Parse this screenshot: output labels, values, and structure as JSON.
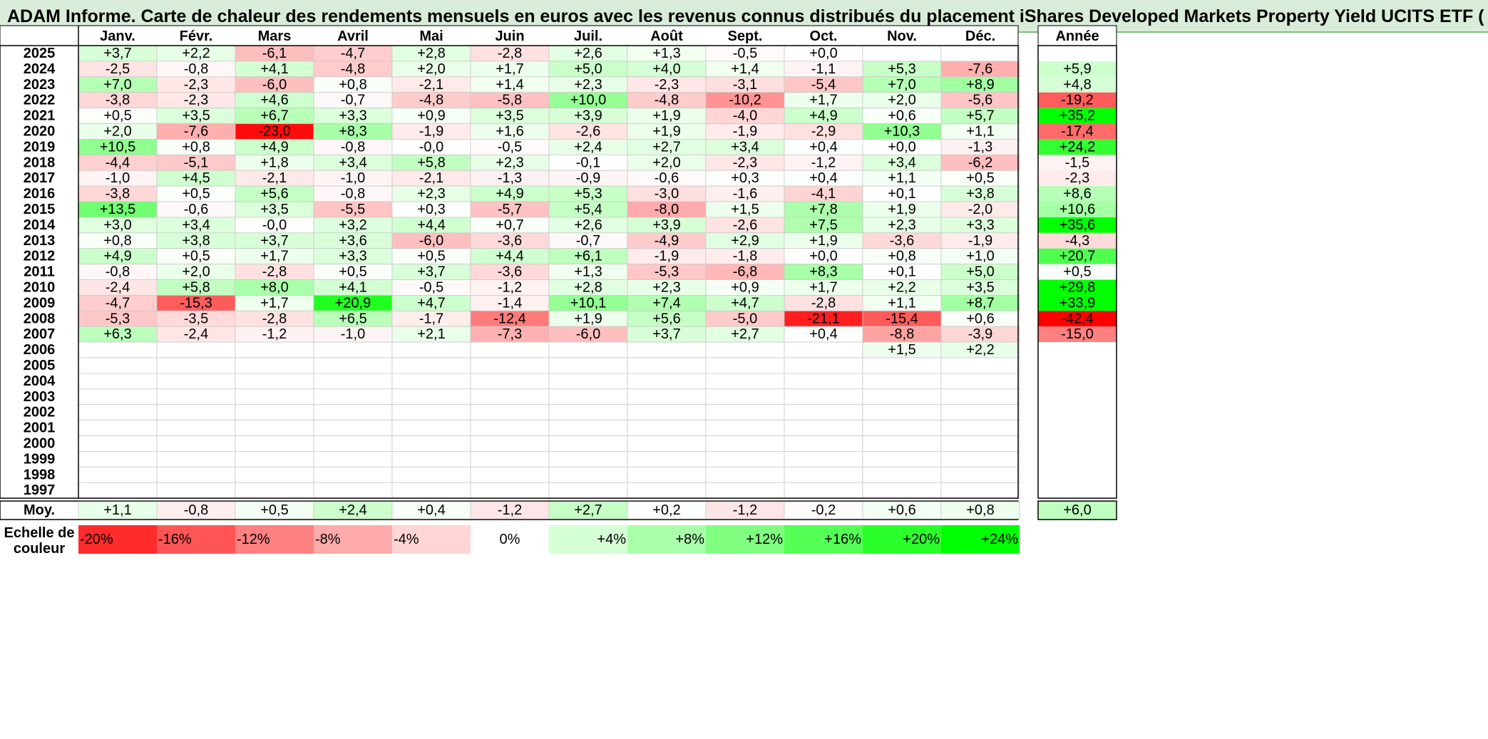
{
  "title": "ADAM Informe. Carte de chaleur des rendements mensuels en euros avec les revenus connus distribués du placement iShares Developed Markets Property Yield UCITS ETF (",
  "colors": {
    "title_bg": "#d9ecd9",
    "negative_max": "#ff0000",
    "positive_max": "#00ff00",
    "zero": "#ffffff"
  },
  "chart_data": {
    "type": "heatmap",
    "months": [
      "Janv.",
      "Févr.",
      "Mars",
      "Avril",
      "Mai",
      "Juin",
      "Juil.",
      "Août",
      "Sept.",
      "Oct.",
      "Nov.",
      "Déc."
    ],
    "year_column_label": "Année",
    "avg_row_label": "Moy.",
    "rows": [
      {
        "year": "2025",
        "values": [
          "+3,7",
          "+2,2",
          "-6,1",
          "-4,7",
          "+2,8",
          "-2,8",
          "+2,6",
          "+1,3",
          "-0,5",
          "+0,0",
          "",
          ""
        ],
        "annual": ""
      },
      {
        "year": "2024",
        "values": [
          "-2,5",
          "-0,8",
          "+4,1",
          "-4,8",
          "+2,0",
          "+1,7",
          "+5,0",
          "+4,0",
          "+1,4",
          "-1,1",
          "+5,3",
          "-7,6"
        ],
        "annual": "+5,9"
      },
      {
        "year": "2023",
        "values": [
          "+7,0",
          "-2,3",
          "-6,0",
          "+0,8",
          "-2,1",
          "+1,4",
          "+2,3",
          "-2,3",
          "-3,1",
          "-5,4",
          "+7,0",
          "+8,9"
        ],
        "annual": "+4,8"
      },
      {
        "year": "2022",
        "values": [
          "-3,8",
          "-2,3",
          "+4,6",
          "-0,7",
          "-4,8",
          "-5,8",
          "+10,0",
          "-4,8",
          "-10,2",
          "+1,7",
          "+2,0",
          "-5,6"
        ],
        "annual": "-19,2"
      },
      {
        "year": "2021",
        "values": [
          "+0,5",
          "+3,5",
          "+6,7",
          "+3,3",
          "+0,9",
          "+3,5",
          "+3,9",
          "+1,9",
          "-4,0",
          "+4,9",
          "+0,6",
          "+5,7"
        ],
        "annual": "+35,2"
      },
      {
        "year": "2020",
        "values": [
          "+2,0",
          "-7,6",
          "-23,0",
          "+8,3",
          "-1,9",
          "+1,6",
          "-2,6",
          "+1,9",
          "-1,9",
          "-2,9",
          "+10,3",
          "+1,1"
        ],
        "annual": "-17,4"
      },
      {
        "year": "2019",
        "values": [
          "+10,5",
          "+0,8",
          "+4,9",
          "-0,8",
          "-0,0",
          "-0,5",
          "+2,4",
          "+2,7",
          "+3,4",
          "+0,4",
          "+0,0",
          "-1,3"
        ],
        "annual": "+24,2"
      },
      {
        "year": "2018",
        "values": [
          "-4,4",
          "-5,1",
          "+1,8",
          "+3,4",
          "+5,8",
          "+2,3",
          "-0,1",
          "+2,0",
          "-2,3",
          "-1,2",
          "+3,4",
          "-6,2"
        ],
        "annual": "-1,5"
      },
      {
        "year": "2017",
        "values": [
          "-1,0",
          "+4,5",
          "-2,1",
          "-1,0",
          "-2,1",
          "-1,3",
          "-0,9",
          "-0,6",
          "+0,3",
          "+0,4",
          "+1,1",
          "+0,5"
        ],
        "annual": "-2,3"
      },
      {
        "year": "2016",
        "values": [
          "-3,8",
          "+0,5",
          "+5,6",
          "-0,8",
          "+2,3",
          "+4,9",
          "+5,3",
          "-3,0",
          "-1,6",
          "-4,1",
          "+0,1",
          "+3,8"
        ],
        "annual": "+8,6"
      },
      {
        "year": "2015",
        "values": [
          "+13,5",
          "-0,6",
          "+3,5",
          "-5,5",
          "+0,3",
          "-5,7",
          "+5,4",
          "-8,0",
          "+1,5",
          "+7,8",
          "+1,9",
          "-2,0"
        ],
        "annual": "+10,6"
      },
      {
        "year": "2014",
        "values": [
          "+3,0",
          "+3,4",
          "-0,0",
          "+3,2",
          "+4,4",
          "+0,7",
          "+2,6",
          "+3,9",
          "-2,6",
          "+7,5",
          "+2,3",
          "+3,3"
        ],
        "annual": "+35,6"
      },
      {
        "year": "2013",
        "values": [
          "+0,8",
          "+3,8",
          "+3,7",
          "+3,6",
          "-6,0",
          "-3,6",
          "-0,7",
          "-4,9",
          "+2,9",
          "+1,9",
          "-3,6",
          "-1,9"
        ],
        "annual": "-4,3"
      },
      {
        "year": "2012",
        "values": [
          "+4,9",
          "+0,5",
          "+1,7",
          "+3,3",
          "+0,5",
          "+4,4",
          "+6,1",
          "-1,9",
          "-1,8",
          "+0,0",
          "+0,8",
          "+1,0"
        ],
        "annual": "+20,7"
      },
      {
        "year": "2011",
        "values": [
          "-0,8",
          "+2,0",
          "-2,8",
          "+0,5",
          "+3,7",
          "-3,6",
          "+1,3",
          "-5,3",
          "-6,8",
          "+8,3",
          "+0,1",
          "+5,0"
        ],
        "annual": "+0,5"
      },
      {
        "year": "2010",
        "values": [
          "-2,4",
          "+5,8",
          "+8,0",
          "+4,1",
          "-0,5",
          "-1,2",
          "+2,8",
          "+2,3",
          "+0,9",
          "+1,7",
          "+2,2",
          "+3,5"
        ],
        "annual": "+29,8"
      },
      {
        "year": "2009",
        "values": [
          "-4,7",
          "-15,3",
          "+1,7",
          "+20,9",
          "+4,7",
          "-1,4",
          "+10,1",
          "+7,4",
          "+4,7",
          "-2,8",
          "+1,1",
          "+8,7"
        ],
        "annual": "+33,9"
      },
      {
        "year": "2008",
        "values": [
          "-5,3",
          "-3,5",
          "-2,8",
          "+6,5",
          "-1,7",
          "-12,4",
          "+1,9",
          "+5,6",
          "-5,0",
          "-21,1",
          "-15,4",
          "+0,6"
        ],
        "annual": "-42,4"
      },
      {
        "year": "2007",
        "values": [
          "+6,3",
          "-2,4",
          "-1,2",
          "-1,0",
          "+2,1",
          "-7,3",
          "-6,0",
          "+3,7",
          "+2,7",
          "+0,4",
          "-8,8",
          "-3,9"
        ],
        "annual": "-15,0"
      },
      {
        "year": "2006",
        "values": [
          "",
          "",
          "",
          "",
          "",
          "",
          "",
          "",
          "",
          "",
          "+1,5",
          "+2,2"
        ],
        "annual": ""
      },
      {
        "year": "2005",
        "values": [
          "",
          "",
          "",
          "",
          "",
          "",
          "",
          "",
          "",
          "",
          "",
          ""
        ],
        "annual": ""
      },
      {
        "year": "2004",
        "values": [
          "",
          "",
          "",
          "",
          "",
          "",
          "",
          "",
          "",
          "",
          "",
          ""
        ],
        "annual": ""
      },
      {
        "year": "2003",
        "values": [
          "",
          "",
          "",
          "",
          "",
          "",
          "",
          "",
          "",
          "",
          "",
          ""
        ],
        "annual": ""
      },
      {
        "year": "2002",
        "values": [
          "",
          "",
          "",
          "",
          "",
          "",
          "",
          "",
          "",
          "",
          "",
          ""
        ],
        "annual": ""
      },
      {
        "year": "2001",
        "values": [
          "",
          "",
          "",
          "",
          "",
          "",
          "",
          "",
          "",
          "",
          "",
          ""
        ],
        "annual": ""
      },
      {
        "year": "2000",
        "values": [
          "",
          "",
          "",
          "",
          "",
          "",
          "",
          "",
          "",
          "",
          "",
          ""
        ],
        "annual": ""
      },
      {
        "year": "1999",
        "values": [
          "",
          "",
          "",
          "",
          "",
          "",
          "",
          "",
          "",
          "",
          "",
          ""
        ],
        "annual": ""
      },
      {
        "year": "1998",
        "values": [
          "",
          "",
          "",
          "",
          "",
          "",
          "",
          "",
          "",
          "",
          "",
          ""
        ],
        "annual": ""
      },
      {
        "year": "1997",
        "values": [
          "",
          "",
          "",
          "",
          "",
          "",
          "",
          "",
          "",
          "",
          "",
          ""
        ],
        "annual": ""
      }
    ],
    "averages": [
      "+1,1",
      "-0,8",
      "+0,5",
      "+2,4",
      "+0,4",
      "-1,2",
      "+2,7",
      "+0,2",
      "-1,2",
      "-0,2",
      "+0,6",
      "+0,8"
    ],
    "average_annual": "+6,0",
    "legend_label": "Echelle de couleur",
    "legend_steps": [
      "-20%",
      "-16%",
      "-12%",
      "-8%",
      "-4%",
      "0%",
      "+4%",
      "+8%",
      "+12%",
      "+16%",
      "+20%",
      "+24%"
    ]
  }
}
